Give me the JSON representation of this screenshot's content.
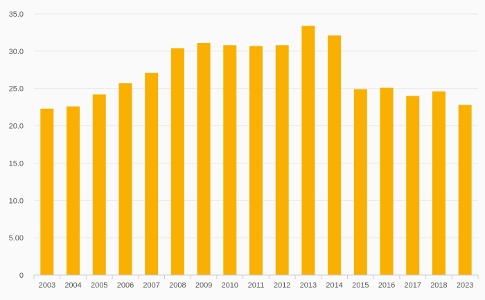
{
  "chart_data": {
    "type": "bar",
    "title": "",
    "xlabel": "",
    "ylabel": "",
    "categories": [
      "2003",
      "2004",
      "2005",
      "2006",
      "2007",
      "2008",
      "2009",
      "2010",
      "2011",
      "2012",
      "2013",
      "2014",
      "2015",
      "2016",
      "2017",
      "2018",
      "2023"
    ],
    "values": [
      22.3,
      22.6,
      24.2,
      25.7,
      27.1,
      30.4,
      31.1,
      30.8,
      30.7,
      30.8,
      33.4,
      32.1,
      24.9,
      25.1,
      24.0,
      24.6,
      22.8
    ],
    "ylim": [
      0,
      35
    ],
    "y_ticks": [
      0,
      5,
      10,
      15,
      20,
      25,
      30,
      35
    ],
    "y_tick_labels": [
      "0",
      "5.00",
      "10.0",
      "15.0",
      "20.0",
      "25.0",
      "30.0",
      "35.0"
    ],
    "grid": true,
    "legend": "none",
    "colors": {
      "bar": "#f9b000",
      "background": "#fafafa",
      "grid": "#e6e6e6",
      "axis": "#cccccc",
      "text": "#555555"
    }
  }
}
